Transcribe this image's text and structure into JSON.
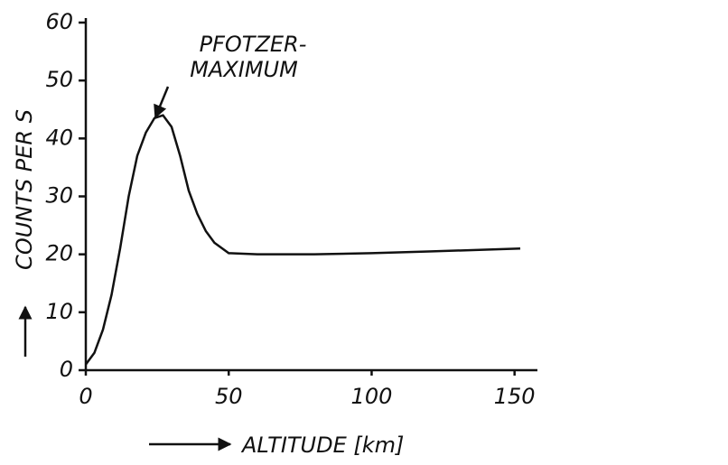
{
  "chart_data": {
    "type": "line",
    "annotation": "PFOTZER-\nMAXIMUM",
    "xlabel": "ALTITUDE [km]",
    "ylabel": "COUNTS PER S",
    "x": [
      0,
      3,
      6,
      9,
      12,
      15,
      18,
      21,
      24,
      27,
      30,
      33,
      36,
      39,
      42,
      45,
      50,
      60,
      80,
      100,
      120,
      140,
      152
    ],
    "series": [
      {
        "name": "counts",
        "color": "#111111",
        "values": [
          1,
          3,
          7,
          13,
          21,
          30,
          37,
          41,
          43.5,
          44,
          42,
          37,
          31,
          27,
          24,
          22,
          20.2,
          20,
          20,
          20.2,
          20.5,
          20.8,
          21
        ]
      }
    ],
    "xlim": [
      0,
      158
    ],
    "xticks": [
      0,
      50,
      100,
      150
    ],
    "ylim": [
      0,
      60
    ],
    "yticks": [
      0,
      10,
      20,
      30,
      40,
      50,
      60
    ],
    "grid": false
  }
}
